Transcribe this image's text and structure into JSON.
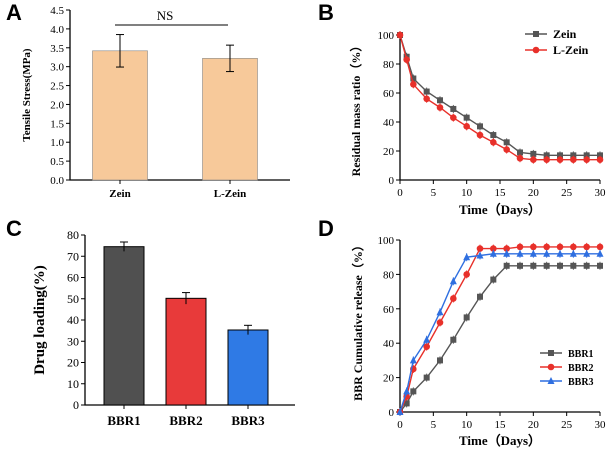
{
  "panels": [
    {
      "letter": "A"
    },
    {
      "letter": "B"
    },
    {
      "letter": "C"
    },
    {
      "letter": "D"
    }
  ],
  "chart_data": [
    {
      "id": "A",
      "type": "bar",
      "categories": [
        "Zein",
        "L-Zein"
      ],
      "values": [
        3.42,
        3.22
      ],
      "errors": [
        0.43,
        0.35
      ],
      "ylabel": "Tensile Stress(MPa)",
      "xlabel": "",
      "ylim": [
        0,
        4.5
      ],
      "yticks": [
        "0.0",
        "0.5",
        "1.0",
        "1.5",
        "2.0",
        "2.5",
        "3.0",
        "3.5",
        "4.0",
        "4.5"
      ],
      "annotation": "NS",
      "color": "#f7c99a"
    },
    {
      "id": "B",
      "type": "line",
      "xlabel": "Time（Days）",
      "ylabel": "Residual mass ratio（%）",
      "xlim": [
        0,
        30
      ],
      "ylim": [
        0,
        100
      ],
      "xticks": [
        "0",
        "5",
        "10",
        "15",
        "20",
        "25",
        "30"
      ],
      "yticks": [
        "0",
        "20",
        "40",
        "60",
        "80",
        "100"
      ],
      "x": [
        0,
        1,
        2,
        4,
        6,
        8,
        10,
        12,
        14,
        16,
        18,
        20,
        22,
        24,
        26,
        28,
        30
      ],
      "series": [
        {
          "name": "Zein",
          "color": "#555555",
          "marker": "square",
          "values": [
            100,
            85,
            70,
            61,
            55,
            49,
            43,
            37,
            31,
            26,
            19,
            18,
            17,
            17,
            17,
            17,
            17
          ]
        },
        {
          "name": "L-Zein",
          "color": "#e8302a",
          "marker": "circle",
          "values": [
            100,
            83,
            66,
            56,
            50,
            43,
            37,
            31,
            26,
            21,
            15,
            14,
            14,
            14,
            14,
            14,
            14
          ]
        }
      ]
    },
    {
      "id": "C",
      "type": "bar",
      "categories": [
        "BBR1",
        "BBR2",
        "BBR3"
      ],
      "values": [
        74.5,
        50.2,
        35.3
      ],
      "errors": [
        2.2,
        2.7,
        2.2
      ],
      "colors": [
        "#505050",
        "#e83a3a",
        "#2f7ae5"
      ],
      "ylabel": "Drug loading(%)",
      "xlabel": "",
      "ylim": [
        0,
        80
      ],
      "yticks": [
        "0",
        "10",
        "20",
        "30",
        "40",
        "50",
        "60",
        "70",
        "80"
      ]
    },
    {
      "id": "D",
      "type": "line",
      "xlabel": "Time（Days）",
      "ylabel": "BBR Cumulative release（%）",
      "xlim": [
        0,
        30
      ],
      "ylim": [
        0,
        100
      ],
      "xticks": [
        "0",
        "5",
        "10",
        "15",
        "20",
        "25",
        "30"
      ],
      "yticks": [
        "0",
        "20",
        "40",
        "60",
        "80",
        "100"
      ],
      "x": [
        0,
        1,
        2,
        4,
        6,
        8,
        10,
        12,
        14,
        16,
        18,
        20,
        22,
        24,
        26,
        28,
        30
      ],
      "series": [
        {
          "name": "BBR1",
          "color": "#555555",
          "marker": "square",
          "values": [
            0,
            5,
            12,
            20,
            30,
            42,
            55,
            67,
            77,
            85,
            85,
            85,
            85,
            85,
            85,
            85,
            85
          ]
        },
        {
          "name": "BBR2",
          "color": "#e8302a",
          "marker": "circle",
          "values": [
            0,
            9,
            25,
            38,
            52,
            66,
            80,
            95,
            95,
            95,
            96,
            96,
            96,
            96,
            96,
            96,
            96
          ]
        },
        {
          "name": "BBR3",
          "color": "#2f6fe0",
          "marker": "triangle",
          "values": [
            0,
            12,
            30,
            42,
            58,
            76,
            90,
            91,
            92,
            92,
            92,
            92,
            92,
            92,
            92,
            92,
            92
          ]
        }
      ]
    }
  ]
}
